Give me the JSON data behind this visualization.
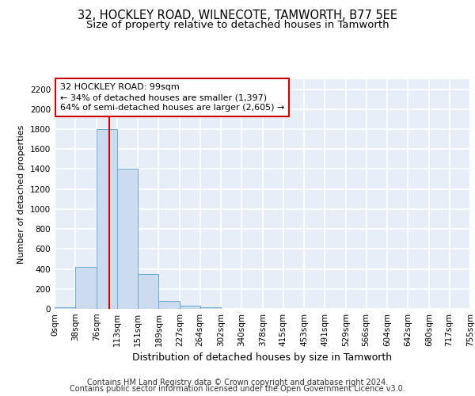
{
  "title1": "32, HOCKLEY ROAD, WILNECOTE, TAMWORTH, B77 5EE",
  "title2": "Size of property relative to detached houses in Tamworth",
  "xlabel": "Distribution of detached houses by size in Tamworth",
  "ylabel": "Number of detached properties",
  "bar_color": "#ccdcee",
  "bar_edge_color": "#6aaad4",
  "property_line_color": "#cc0000",
  "annotation_text": "32 HOCKLEY ROAD: 99sqm\n← 34% of detached houses are smaller (1,397)\n64% of semi-detached houses are larger (2,605) →",
  "annotation_box_color": "#cc0000",
  "property_sqm": 99,
  "footnote_line1": "Contains HM Land Registry data © Crown copyright and database right 2024.",
  "footnote_line2": "Contains public sector information licensed under the Open Government Licence v3.0.",
  "bin_edges": [
    0,
    38,
    76,
    113,
    151,
    189,
    227,
    264,
    302,
    340,
    378,
    415,
    453,
    491,
    529,
    566,
    604,
    642,
    680,
    717,
    755
  ],
  "bar_heights": [
    15,
    420,
    1800,
    1400,
    350,
    80,
    30,
    15,
    0,
    0,
    0,
    0,
    0,
    0,
    0,
    0,
    0,
    0,
    0,
    0
  ],
  "ylim": [
    0,
    2300
  ],
  "yticks": [
    0,
    200,
    400,
    600,
    800,
    1000,
    1200,
    1400,
    1600,
    1800,
    2000,
    2200
  ],
  "background_color": "#e8eef8",
  "grid_color": "#ffffff",
  "title1_fontsize": 10.5,
  "title2_fontsize": 9.5,
  "xlabel_fontsize": 9,
  "ylabel_fontsize": 8,
  "tick_fontsize": 7.5,
  "footnote_fontsize": 7
}
